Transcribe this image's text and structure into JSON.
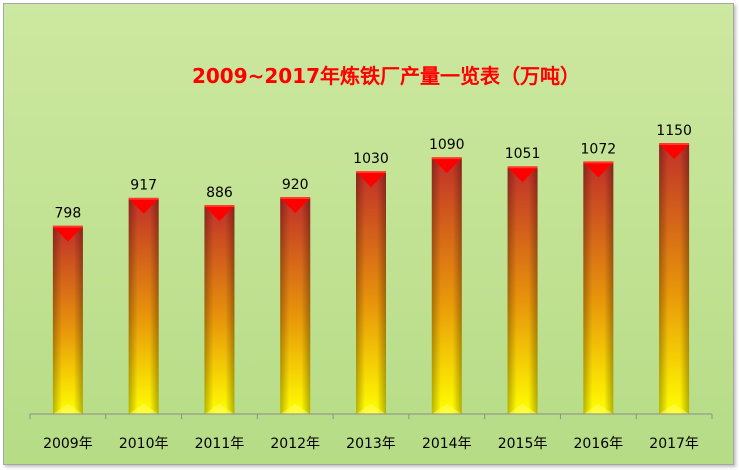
{
  "chart_data": {
    "type": "bar",
    "title": "2009~2017年炼铁厂产量一览表（万吨）",
    "categories": [
      "2009年",
      "2010年",
      "2011年",
      "2012年",
      "2013年",
      "2014年",
      "2015年",
      "2016年",
      "2017年"
    ],
    "values": [
      798,
      917,
      886,
      920,
      1030,
      1090,
      1051,
      1072,
      1150
    ],
    "ylim": [
      0,
      1400
    ],
    "grid": false,
    "legend": "none",
    "colors": {
      "background": "#b8dc88",
      "bar_top": "#c0302a",
      "bar_bottom": "#ffff00",
      "cap": "#ff0000",
      "title": "#ff0000"
    }
  }
}
